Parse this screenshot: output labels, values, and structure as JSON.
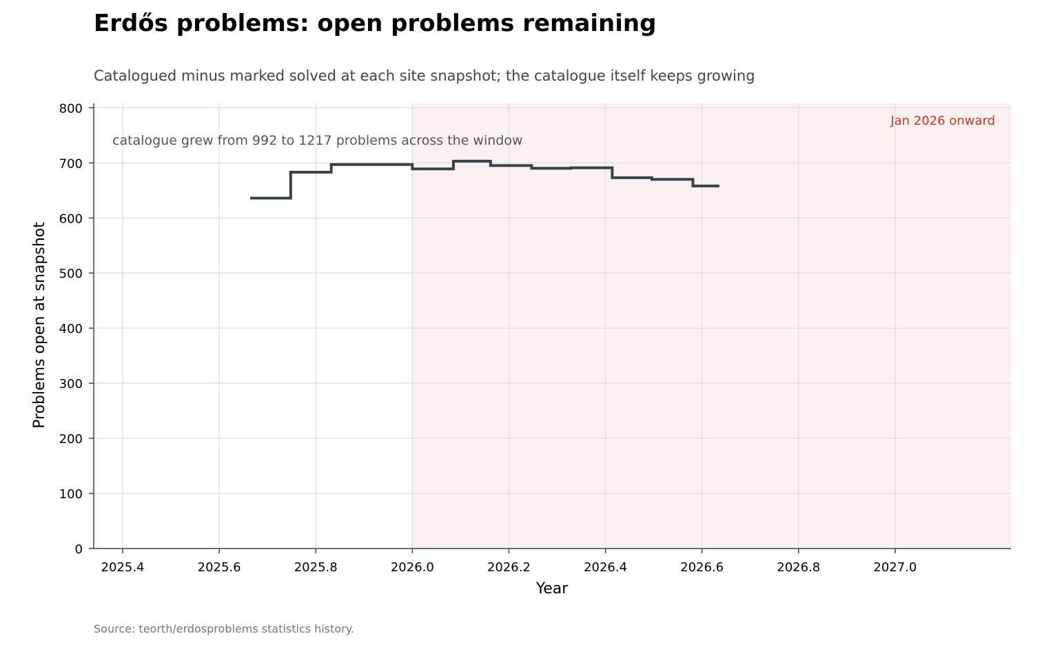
{
  "chart_data": {
    "type": "line",
    "step": true,
    "title": "Erdős problems: open problems remaining",
    "subtitle": "Catalogued minus marked solved at each site snapshot; the catalogue itself keeps growing",
    "xlabel": "Year",
    "ylabel": "Problems open at snapshot",
    "source": "Source: teorth/erdosproblems statistics history.",
    "xlim": [
      2025.34,
      2027.24
    ],
    "ylim": [
      0,
      808
    ],
    "xticks": [
      2025.4,
      2025.6,
      2025.8,
      2026.0,
      2026.2,
      2026.4,
      2026.6,
      2026.8,
      2027.0
    ],
    "xtick_labels": [
      "2025.4",
      "2025.6",
      "2025.8",
      "2026.0",
      "2026.2",
      "2026.4",
      "2026.6",
      "2026.8",
      "2027.0"
    ],
    "yticks": [
      0,
      100,
      200,
      300,
      400,
      500,
      600,
      700,
      800
    ],
    "ytick_labels": [
      "0",
      "100",
      "200",
      "300",
      "400",
      "500",
      "600",
      "700",
      "800"
    ],
    "grid": true,
    "line_color": "#37434a",
    "series": [
      {
        "x": [
          2025.664,
          2025.748,
          2025.832,
          2025.915,
          2026.0,
          2026.085,
          2026.162,
          2026.247,
          2026.329,
          2026.414,
          2026.496,
          2026.581,
          2026.636
        ],
        "values": [
          636,
          683,
          697,
          697,
          689,
          703,
          695,
          690,
          691,
          673,
          670,
          658,
          658
        ]
      }
    ],
    "shaded_region": {
      "x_start": 2026.0,
      "label": "Jan 2026 onward",
      "fill": "#faf1f0",
      "label_color": "#c0392b"
    },
    "annotations": [
      {
        "text": "catalogue grew from 992 to 1217 problems across the window"
      }
    ]
  }
}
